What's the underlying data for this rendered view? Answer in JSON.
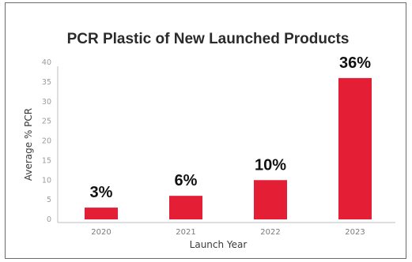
{
  "chart_data": {
    "type": "bar",
    "title": "PCR Plastic of New Launched Products",
    "xlabel": "Launch Year",
    "ylabel": "Average % PCR",
    "categories": [
      "2020",
      "2021",
      "2022",
      "2023"
    ],
    "values": [
      3,
      6,
      10,
      36
    ],
    "data_labels": [
      "3%",
      "6%",
      "10%",
      "36%"
    ],
    "ylim": [
      0,
      40
    ],
    "yticks": [
      0,
      5,
      10,
      15,
      20,
      25,
      30,
      35,
      40
    ],
    "ytick_labels": [
      "0",
      "5",
      "10",
      "15",
      "20",
      "25",
      "30",
      "35",
      "40"
    ],
    "bar_color": "#e41f35",
    "grid": false
  }
}
